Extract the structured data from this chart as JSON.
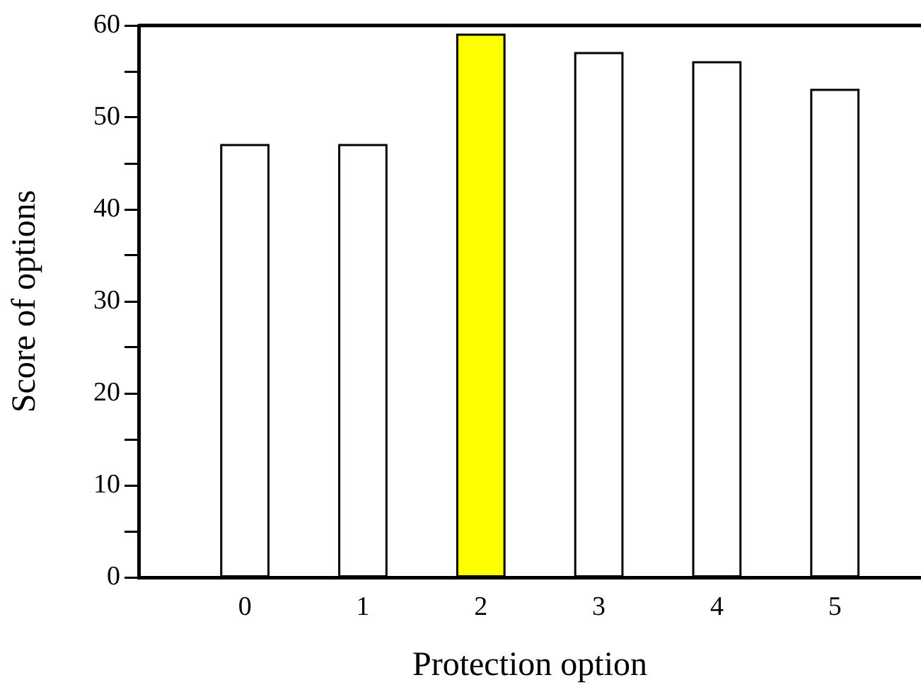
{
  "chart_data": {
    "type": "bar",
    "x": [
      0,
      1,
      2,
      3,
      4,
      5
    ],
    "values": [
      47,
      47,
      59,
      57,
      56,
      53
    ],
    "colors": [
      "#ffffff",
      "#ffffff",
      "#ffff00",
      "#ffffff",
      "#ffffff",
      "#ffffff"
    ],
    "xlabel": "Protection option",
    "ylabel": "Score of options",
    "xlim": [
      -0.9,
      5.73
    ],
    "xticks": [
      0,
      1,
      2,
      3,
      4,
      5
    ],
    "ylim": [
      0,
      60
    ],
    "yticks": [
      0,
      {
        "value": 5,
        "label": null
      },
      10,
      {
        "value": 15,
        "label": null
      },
      20,
      {
        "value": 25,
        "label": null
      },
      30,
      {
        "value": 35,
        "label": null
      },
      40,
      {
        "value": 45,
        "label": null
      },
      50,
      {
        "value": 55,
        "label": null
      },
      60
    ],
    "grid": false,
    "legend": false
  }
}
